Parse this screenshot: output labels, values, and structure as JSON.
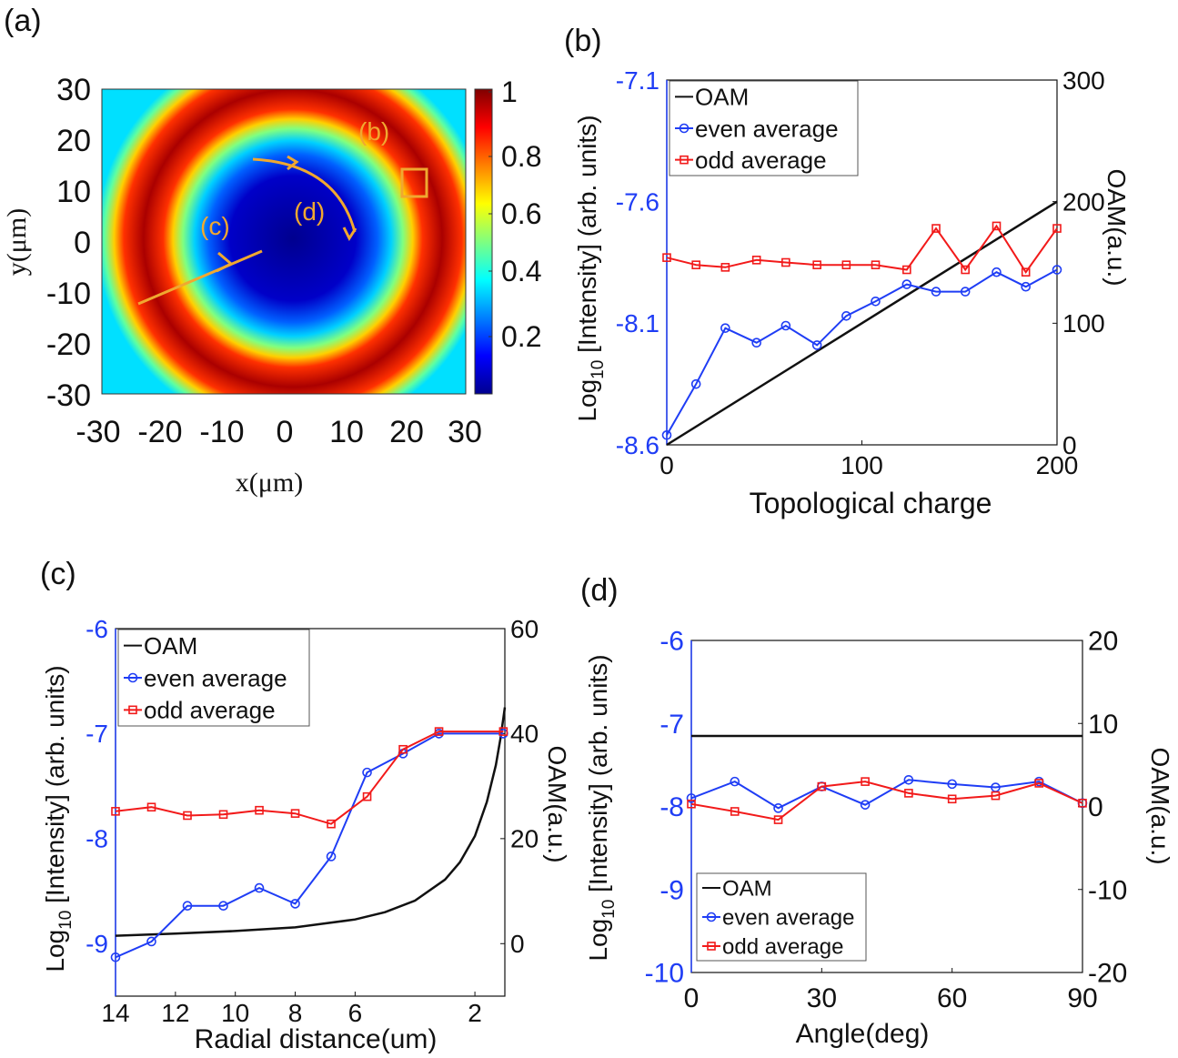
{
  "colors": {
    "blue": "#1f3df5",
    "red": "#f21a1a",
    "black": "#111111",
    "annotation": "#f0a830"
  },
  "chart_data": [
    {
      "id": "a",
      "panel_label": "(a)",
      "type": "heatmap",
      "xlabel": "x(μm)",
      "ylabel": "y(μm)",
      "xlim": [
        -30,
        30
      ],
      "ylim": [
        -30,
        30
      ],
      "xticks": [
        "-30",
        "-20",
        "-10",
        "0",
        "10",
        "20",
        "30"
      ],
      "yticks": [
        "30",
        "20",
        "10",
        "0",
        "-10",
        "-20",
        "-30"
      ],
      "colorbar_ticks": [
        "1",
        "0.8",
        "0.6",
        "0.4",
        "0.2"
      ],
      "annotations": [
        "(b)",
        "(c)",
        "(d)"
      ]
    },
    {
      "id": "b",
      "panel_label": "(b)",
      "type": "line",
      "xlabel": "Topological charge",
      "ylabel": "Log10 [Intensity] (arb. units)",
      "ylabel_base": "Log",
      "ylabel_sub": "10",
      "ylabel_rest": " [Intensity] (arb. units)",
      "y2label": "OAM(a.u.)",
      "xlim": [
        0,
        200
      ],
      "ylim": [
        -8.6,
        -7.1
      ],
      "y2lim": [
        0,
        300
      ],
      "xticks": [
        "0",
        "100",
        "200"
      ],
      "yticks": [
        "-7.1",
        "-7.6",
        "-8.1",
        "-8.6"
      ],
      "y2ticks": [
        "300",
        "200",
        "100",
        "0"
      ],
      "legend": [
        "OAM",
        "even average",
        "odd average"
      ],
      "oam": {
        "x": [
          0,
          200
        ],
        "y": [
          0,
          200
        ]
      },
      "series": [
        {
          "name": "even average",
          "x": [
            0,
            15,
            30,
            46,
            61,
            77,
            92,
            107,
            123,
            138,
            153,
            169,
            184,
            200
          ],
          "values": [
            -8.56,
            -8.35,
            -8.12,
            -8.18,
            -8.11,
            -8.19,
            -8.07,
            -8.01,
            -7.94,
            -7.97,
            -7.97,
            -7.89,
            -7.95,
            -7.88
          ]
        },
        {
          "name": "odd average",
          "x": [
            0,
            15,
            30,
            46,
            61,
            77,
            92,
            107,
            123,
            138,
            153,
            169,
            184,
            200
          ],
          "values": [
            -7.83,
            -7.86,
            -7.87,
            -7.84,
            -7.85,
            -7.86,
            -7.86,
            -7.86,
            -7.88,
            -7.71,
            -7.88,
            -7.7,
            -7.89,
            -7.71
          ]
        }
      ]
    },
    {
      "id": "c",
      "panel_label": "(c)",
      "type": "line",
      "xlabel": "Radial distance(um)",
      "ylabel": "Log10 [Intensity] (arb. units)",
      "ylabel_base": "Log",
      "ylabel_sub": "10",
      "ylabel_rest": " [Intensity] (arb. units)",
      "y2label": "OAM(a.u.)",
      "xlim": [
        14,
        1
      ],
      "ylim": [
        -9.5,
        -6
      ],
      "y2lim": [
        -10,
        60
      ],
      "xticks": [
        "14",
        "12",
        "10",
        "8",
        "6",
        "2"
      ],
      "yticks": [
        "-6",
        "-7",
        "-8",
        "-9"
      ],
      "y2ticks": [
        "60",
        "40",
        "20",
        "0"
      ],
      "legend": [
        "OAM",
        "even average",
        "odd average"
      ],
      "oam_curve": {
        "x": [
          14,
          12,
          10,
          8,
          6,
          5,
          4,
          3,
          2.5,
          2,
          1.6,
          1.3,
          1.15,
          1.05,
          1
        ],
        "y": [
          1.5,
          1.9,
          2.4,
          3.1,
          4.6,
          6.0,
          8.2,
          12.2,
          15.5,
          20.5,
          27,
          34,
          39,
          43,
          45
        ]
      },
      "series": [
        {
          "name": "even average",
          "x": [
            14,
            12.8,
            11.6,
            10.4,
            9.2,
            8,
            6.8,
            5.6,
            4.4,
            3.2,
            1.05
          ],
          "values": [
            -9.13,
            -8.98,
            -8.64,
            -8.64,
            -8.47,
            -8.62,
            -8.17,
            -7.37,
            -7.19,
            -7.0,
            -7.0
          ]
        },
        {
          "name": "odd average",
          "x": [
            14,
            12.8,
            11.6,
            10.4,
            9.2,
            8,
            6.8,
            5.6,
            4.4,
            3.2,
            1.05
          ],
          "values": [
            -7.74,
            -7.7,
            -7.78,
            -7.77,
            -7.73,
            -7.76,
            -7.86,
            -7.6,
            -7.15,
            -6.98,
            -6.98
          ]
        }
      ]
    },
    {
      "id": "d",
      "panel_label": "(d)",
      "type": "line",
      "xlabel": "Angle(deg)",
      "ylabel": "Log10 [Intensity] (arb. units)",
      "ylabel_base": "Log",
      "ylabel_sub": "10",
      "ylabel_rest": " [Intensity] (arb. units)",
      "y2label": "OAM(a.u.)",
      "xlim": [
        0,
        90
      ],
      "ylim": [
        -10,
        -6
      ],
      "y2lim": [
        -20,
        20
      ],
      "xticks": [
        "0",
        "30",
        "60",
        "90"
      ],
      "yticks": [
        "-6",
        "-7",
        "-8",
        "-9",
        "-10"
      ],
      "y2ticks": [
        "20",
        "10",
        "0",
        "-10",
        "-20"
      ],
      "legend": [
        "OAM",
        "even average",
        "odd average"
      ],
      "oam": {
        "x": [
          0,
          90
        ],
        "y": [
          8.5,
          8.5
        ]
      },
      "series": [
        {
          "name": "even average",
          "x": [
            0,
            10,
            20,
            30,
            40,
            50,
            60,
            70,
            80,
            90
          ],
          "values": [
            -7.9,
            -7.7,
            -8.02,
            -7.76,
            -7.98,
            -7.68,
            -7.73,
            -7.77,
            -7.7,
            -7.96
          ]
        },
        {
          "name": "odd average",
          "x": [
            0,
            10,
            20,
            30,
            40,
            50,
            60,
            70,
            80,
            90
          ],
          "values": [
            -7.97,
            -8.06,
            -8.16,
            -7.76,
            -7.7,
            -7.84,
            -7.91,
            -7.87,
            -7.72,
            -7.96
          ]
        }
      ]
    }
  ]
}
